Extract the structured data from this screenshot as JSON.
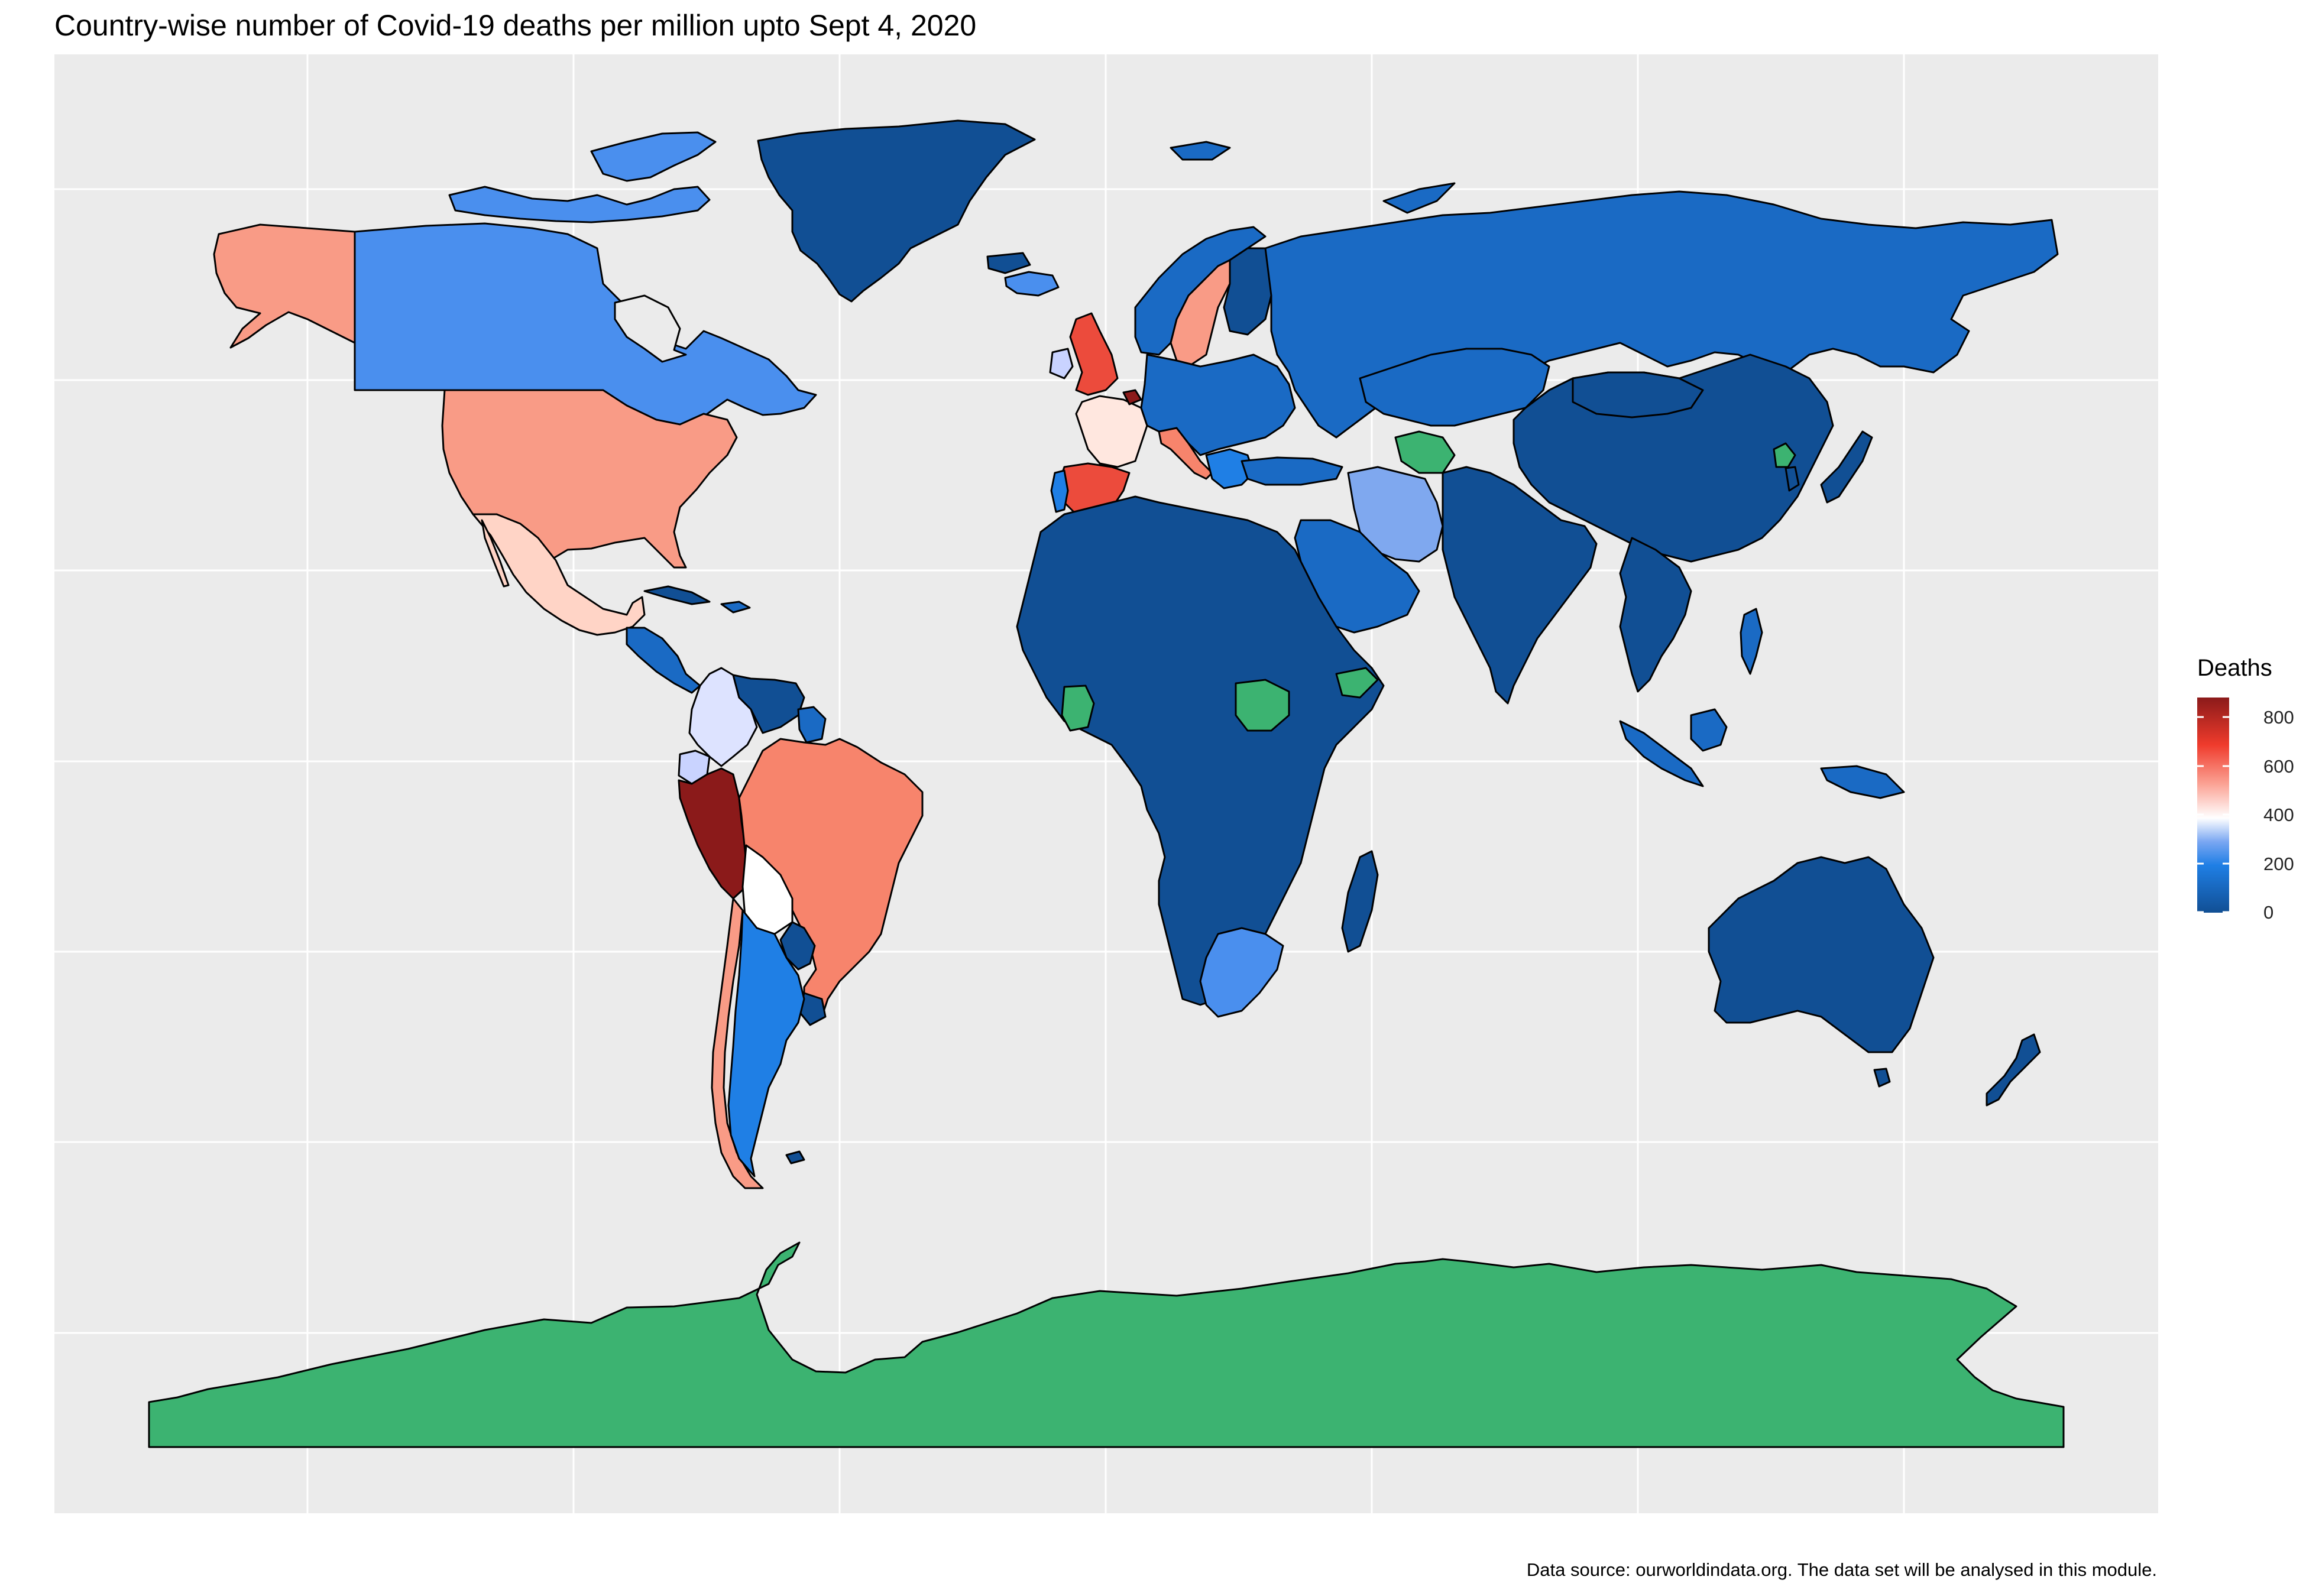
{
  "title": "Country-wise number of Covid-19 deaths per million upto Sept 4, 2020",
  "caption": "Data source: ourworldindata.org. The data set will be analysed in this module.",
  "legend": {
    "title": "Deaths",
    "ticks": [
      "800",
      "600",
      "400",
      "200",
      "0"
    ],
    "scale": {
      "min": 0,
      "max": 900,
      "low": "#114f94",
      "mid_low": "#1f7fe5",
      "mid": "#ffffff",
      "mid_high": "#ef3b2c",
      "high": "#8b1a1a"
    },
    "missing_color": "#3cb371"
  },
  "colors": {
    "panel": "#ebebeb",
    "grid": "#ffffff",
    "border": "#000000",
    "very_low": "#114f94",
    "low": "#1a6ac4",
    "mid_blue": "#1f7fe5",
    "light_blue": "#4a8fee",
    "pale_blue": "#9bb8f5",
    "lavender": "#dde3ff",
    "white": "#ffffff",
    "pink_light": "#ffd4c6",
    "salmon": "#f99b86",
    "salmon_dark": "#f7846c",
    "red": "#ec4b3c",
    "dark_red": "#8b1a1a",
    "no_data": "#3cb371"
  },
  "regions": {
    "antarctica": "no data",
    "greenland": "very low",
    "canada": "light blue",
    "alaska": "salmon",
    "usa": "salmon",
    "mexico": "pink light",
    "brazil": "salmon",
    "peru": "dark red",
    "chile": "salmon",
    "argentina": "mid blue",
    "bolivia": "white",
    "colombia": "lavender",
    "russia": "low",
    "china": "very low",
    "iran": "light blue",
    "south_africa": "light blue",
    "australia": "very low",
    "spain": "red",
    "france": "white",
    "united_kingdom": "red"
  }
}
